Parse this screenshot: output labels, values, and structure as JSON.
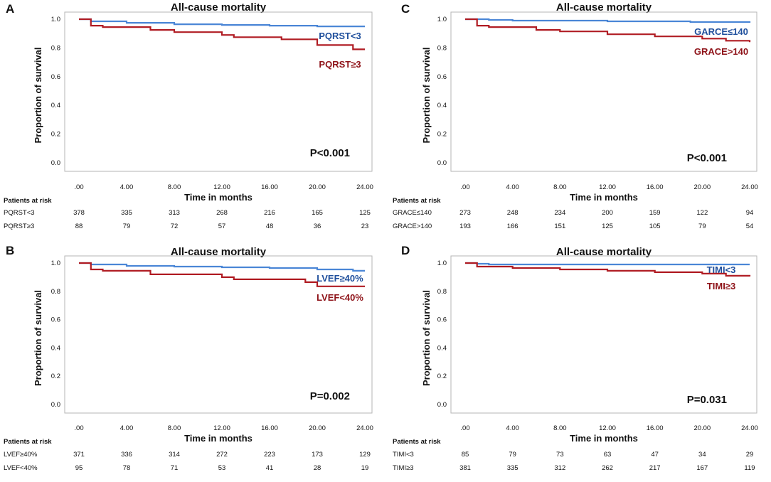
{
  "chart_data": [
    {
      "panel": "A",
      "type": "line",
      "step": true,
      "title": "All-cause mortality",
      "xlabel": "Time in months",
      "ylabel": "Proportion of survival",
      "xticks": [
        ".00",
        "4.00",
        "8.00",
        "12.00",
        "16.00",
        "20.00",
        "24.00"
      ],
      "yticks": [
        "0.0",
        "0.2",
        "0.4",
        "0.6",
        "0.8",
        "1.0"
      ],
      "xlim": [
        0,
        24
      ],
      "ylim": [
        0,
        1
      ],
      "p_value": "P<0.001",
      "series": [
        {
          "name": "PQRST<3",
          "color": "#4a86d6",
          "points": [
            [
              0,
              1.0
            ],
            [
              1,
              0.985
            ],
            [
              4,
              0.975
            ],
            [
              8,
              0.965
            ],
            [
              12,
              0.96
            ],
            [
              16,
              0.955
            ],
            [
              20,
              0.95
            ],
            [
              24,
              0.95
            ]
          ]
        },
        {
          "name": "PQRST≥3",
          "color": "#b01c23",
          "points": [
            [
              0,
              1.0
            ],
            [
              1,
              0.955
            ],
            [
              2,
              0.945
            ],
            [
              6,
              0.925
            ],
            [
              8,
              0.91
            ],
            [
              12,
              0.89
            ],
            [
              13,
              0.875
            ],
            [
              17,
              0.86
            ],
            [
              20,
              0.82
            ],
            [
              23,
              0.79
            ],
            [
              24,
              0.79
            ]
          ]
        }
      ],
      "risk_table": {
        "header": "Patients at risk",
        "rows": [
          {
            "label": "PQRST<3",
            "values": [
              "378",
              "335",
              "313",
              "268",
              "216",
              "165",
              "125"
            ]
          },
          {
            "label": "PQRST≥3",
            "values": [
              "88",
              "79",
              "72",
              "57",
              "48",
              "36",
              "23"
            ]
          }
        ]
      }
    },
    {
      "panel": "B",
      "type": "line",
      "step": true,
      "title": "All-cause mortality",
      "xlabel": "Time in months",
      "ylabel": "Proportion of survival",
      "xticks": [
        ".00",
        "4.00",
        "8.00",
        "12.00",
        "16.00",
        "20.00",
        "24.00"
      ],
      "yticks": [
        "0.0",
        "0.2",
        "0.4",
        "0.6",
        "0.8",
        "1.0"
      ],
      "xlim": [
        0,
        24
      ],
      "ylim": [
        0,
        1
      ],
      "p_value": "P=0.002",
      "series": [
        {
          "name": "LVEF≥40%",
          "color": "#4a86d6",
          "points": [
            [
              0,
              1.0
            ],
            [
              1,
              0.99
            ],
            [
              4,
              0.98
            ],
            [
              8,
              0.975
            ],
            [
              12,
              0.97
            ],
            [
              16,
              0.965
            ],
            [
              20,
              0.955
            ],
            [
              23,
              0.945
            ],
            [
              24,
              0.945
            ]
          ]
        },
        {
          "name": "LVEF<40%",
          "color": "#b01c23",
          "points": [
            [
              0,
              1.0
            ],
            [
              1,
              0.955
            ],
            [
              2,
              0.945
            ],
            [
              6,
              0.92
            ],
            [
              12,
              0.9
            ],
            [
              13,
              0.885
            ],
            [
              19,
              0.865
            ],
            [
              20,
              0.835
            ],
            [
              24,
              0.835
            ]
          ]
        }
      ],
      "risk_table": {
        "header": "Patients at risk",
        "rows": [
          {
            "label": "LVEF≥40%",
            "values": [
              "371",
              "336",
              "314",
              "272",
              "223",
              "173",
              "129"
            ]
          },
          {
            "label": "LVEF<40%",
            "values": [
              "95",
              "78",
              "71",
              "53",
              "41",
              "28",
              "19"
            ]
          }
        ]
      }
    },
    {
      "panel": "C",
      "type": "line",
      "step": true,
      "title": "All-cause mortality",
      "xlabel": "Time in months",
      "ylabel": "Proportion of survival",
      "xticks": [
        ".00",
        "4.00",
        "8.00",
        "12.00",
        "16.00",
        "20.00",
        "24.00"
      ],
      "yticks": [
        "0.0",
        "0.2",
        "0.4",
        "0.6",
        "0.8",
        "1.0"
      ],
      "xlim": [
        0,
        24
      ],
      "ylim": [
        0,
        1
      ],
      "p_value": "P<0.001",
      "series": [
        {
          "name": "GARCE≤140",
          "color": "#4a86d6",
          "points": [
            [
              0,
              1.0
            ],
            [
              2,
              0.995
            ],
            [
              4,
              0.99
            ],
            [
              12,
              0.985
            ],
            [
              19,
              0.98
            ],
            [
              24,
              0.975
            ]
          ]
        },
        {
          "name": "GRACE>140",
          "color": "#b01c23",
          "points": [
            [
              0,
              1.0
            ],
            [
              1,
              0.955
            ],
            [
              2,
              0.945
            ],
            [
              6,
              0.925
            ],
            [
              8,
              0.915
            ],
            [
              12,
              0.895
            ],
            [
              16,
              0.88
            ],
            [
              20,
              0.865
            ],
            [
              22,
              0.85
            ],
            [
              24,
              0.84
            ]
          ]
        }
      ],
      "risk_table": {
        "header": "Patients at risk",
        "rows": [
          {
            "label": "GRACE≤140",
            "values": [
              "273",
              "248",
              "234",
              "200",
              "159",
              "122",
              "94"
            ]
          },
          {
            "label": "GRACE>140",
            "values": [
              "193",
              "166",
              "151",
              "125",
              "105",
              "79",
              "54"
            ]
          }
        ]
      }
    },
    {
      "panel": "D",
      "type": "line",
      "step": true,
      "title": "All-cause mortality",
      "xlabel": "Time in months",
      "ylabel": "Proportion of survival",
      "xticks": [
        ".00",
        "4.00",
        "8.00",
        "12.00",
        "16.00",
        "20.00",
        "24.00"
      ],
      "yticks": [
        "0.0",
        "0.2",
        "0.4",
        "0.6",
        "0.8",
        "1.0"
      ],
      "xlim": [
        0,
        24
      ],
      "ylim": [
        0,
        1
      ],
      "p_value": "P=0.031",
      "series": [
        {
          "name": "TIMI<3",
          "color": "#4a86d6",
          "points": [
            [
              0,
              1.0
            ],
            [
              1,
              0.995
            ],
            [
              2,
              0.99
            ],
            [
              24,
              0.99
            ]
          ]
        },
        {
          "name": "TIMI≥3",
          "color": "#b01c23",
          "points": [
            [
              0,
              1.0
            ],
            [
              1,
              0.975
            ],
            [
              4,
              0.965
            ],
            [
              8,
              0.955
            ],
            [
              12,
              0.945
            ],
            [
              16,
              0.935
            ],
            [
              20,
              0.925
            ],
            [
              22,
              0.91
            ],
            [
              24,
              0.905
            ]
          ]
        }
      ],
      "risk_table": {
        "header": "Patients at risk",
        "rows": [
          {
            "label": "TIMI<3",
            "values": [
              "85",
              "79",
              "73",
              "63",
              "47",
              "34",
              "29"
            ]
          },
          {
            "label": "TIMI≥3",
            "values": [
              "381",
              "335",
              "312",
              "262",
              "217",
              "167",
              "119"
            ]
          }
        ]
      }
    }
  ]
}
